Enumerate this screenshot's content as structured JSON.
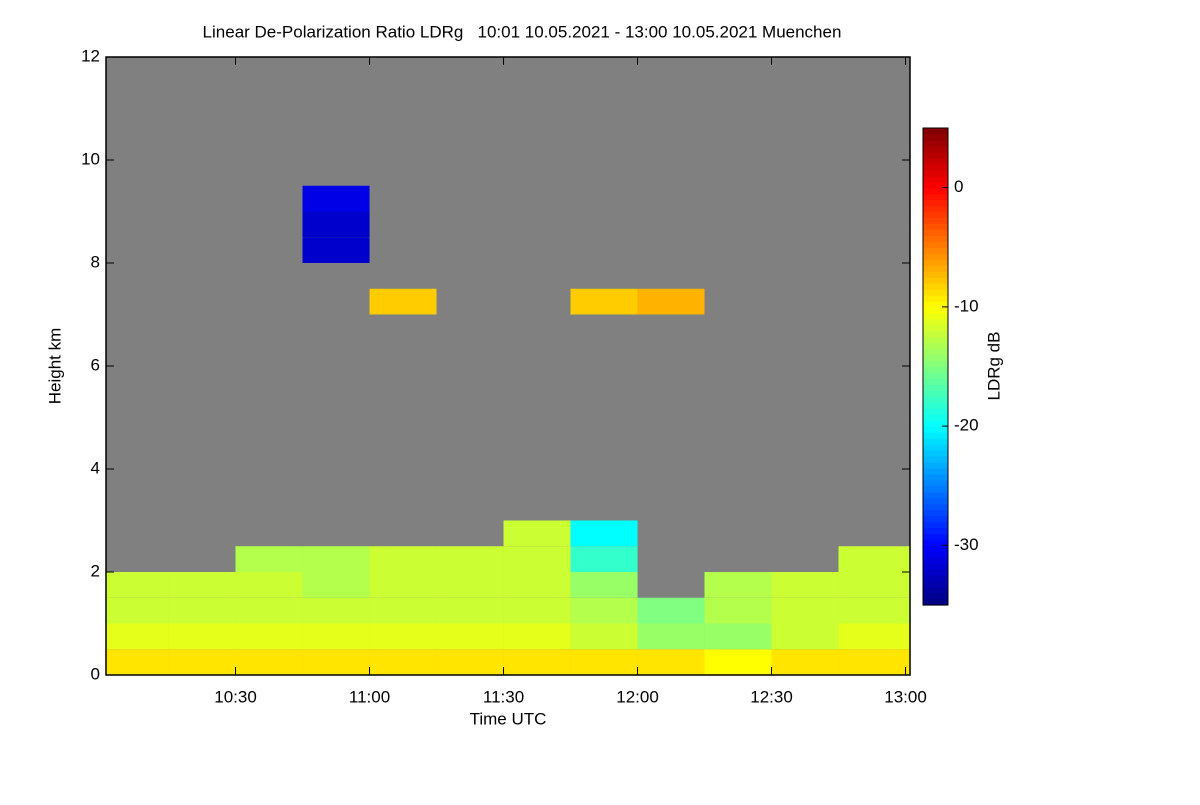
{
  "chart_data": {
    "type": "heatmap",
    "title": "Linear De-Polarization Ratio LDRg   10:01 10.05.2021 - 13:00 10.05.2021 Muenchen",
    "x_label": "Time UTC",
    "y_label": "Height km",
    "colorbar_label": "LDRg dB",
    "xlim": [
      10.0167,
      13.0167
    ],
    "xticks": [
      {
        "value": 10.5,
        "label": "10:30"
      },
      {
        "value": 11,
        "label": "11:00"
      },
      {
        "value": 11.5,
        "label": "11:30"
      },
      {
        "value": 12,
        "label": "12:00"
      },
      {
        "value": 12.5,
        "label": "12:30"
      },
      {
        "value": 13,
        "label": "13:00"
      }
    ],
    "ylim": [
      0,
      12
    ],
    "yticks": [
      0,
      2,
      4,
      6,
      8,
      10,
      12
    ],
    "zlim": [
      -35,
      5
    ],
    "zticks": [
      0,
      -10,
      -20,
      -30
    ],
    "nodata_color": "#808080",
    "xbins": [
      10.0167,
      10.25,
      10.5,
      10.75,
      11,
      11.25,
      11.5,
      11.75,
      12,
      12.25,
      12.5,
      12.75,
      13.0167
    ],
    "ybins": [
      0,
      0.5,
      1,
      1.5,
      2,
      2.5,
      3,
      3.5,
      7,
      7.5,
      8,
      8.5,
      9,
      9.5,
      12
    ],
    "values": [
      [
        -9,
        -9,
        -9,
        -9,
        -9,
        -9,
        -9,
        -9,
        -9,
        -10,
        -9,
        -9
      ],
      [
        -11,
        -11,
        -11,
        -11,
        -11,
        -11,
        -11,
        -12,
        -14,
        -14,
        -12,
        -11
      ],
      [
        -12,
        -12,
        -12,
        -12,
        -12,
        -12,
        -12,
        -13,
        -15,
        -13,
        -12,
        -12
      ],
      [
        -12,
        -12,
        -12,
        -13,
        -12,
        -12,
        -12,
        -14,
        null,
        -13,
        -12,
        -12
      ],
      [
        null,
        null,
        -13,
        -13,
        -12,
        -12,
        -12,
        -18,
        null,
        null,
        null,
        -12
      ],
      [
        null,
        null,
        null,
        null,
        null,
        null,
        -12,
        -20,
        null,
        null,
        null,
        null
      ],
      [
        null,
        null,
        null,
        null,
        null,
        null,
        null,
        null,
        null,
        null,
        null,
        null
      ],
      [
        null,
        null,
        null,
        null,
        null,
        null,
        null,
        null,
        null,
        null,
        null,
        null
      ],
      [
        null,
        null,
        null,
        null,
        -8,
        null,
        null,
        -8,
        -7,
        null,
        null,
        null
      ],
      [
        null,
        null,
        null,
        null,
        null,
        null,
        null,
        null,
        null,
        null,
        null,
        null
      ],
      [
        null,
        null,
        null,
        -32,
        null,
        null,
        null,
        null,
        null,
        null,
        null,
        null
      ],
      [
        null,
        null,
        null,
        -32,
        null,
        null,
        null,
        null,
        null,
        null,
        null,
        null
      ],
      [
        null,
        null,
        null,
        -31,
        null,
        null,
        null,
        null,
        null,
        null,
        null,
        null
      ],
      [
        null,
        null,
        null,
        null,
        null,
        null,
        null,
        null,
        null,
        null,
        null,
        null
      ]
    ]
  }
}
